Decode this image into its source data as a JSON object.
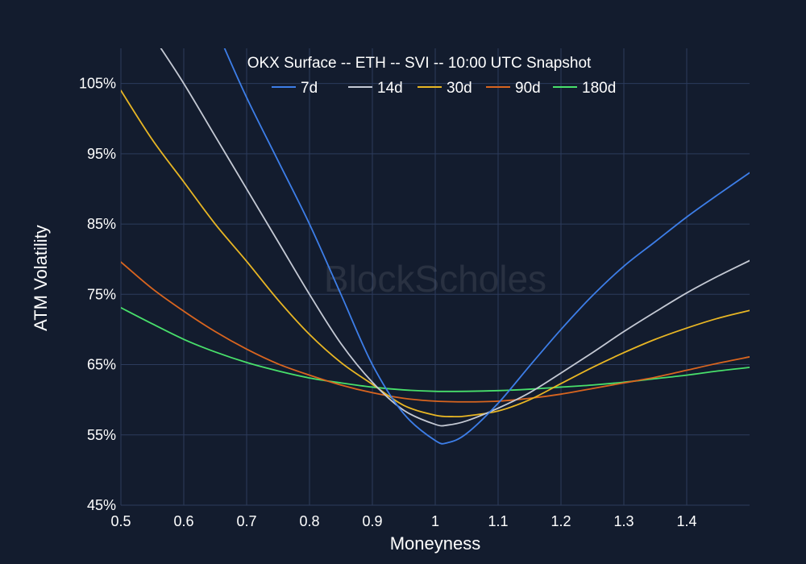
{
  "chart_data": {
    "type": "line",
    "title": "OKX Surface -- ETH -- SVI -- 10:00 UTC Snapshot",
    "xlabel": "Moneyness",
    "ylabel": "ATM Volatility",
    "xlim": [
      0.5,
      1.5
    ],
    "ylim": [
      45,
      110
    ],
    "x_ticks": [
      0.5,
      0.6,
      0.7,
      0.8,
      0.9,
      1.0,
      1.1,
      1.2,
      1.3,
      1.4
    ],
    "x_tick_labels": [
      "0.5",
      "0.6",
      "0.7",
      "0.8",
      "0.9",
      "1",
      "1.1",
      "1.2",
      "1.3",
      "1.4"
    ],
    "y_ticks": [
      45,
      55,
      65,
      75,
      85,
      95,
      105
    ],
    "y_tick_labels": [
      "45%",
      "55%",
      "65%",
      "75%",
      "85%",
      "95%",
      "105%"
    ],
    "grid": true,
    "legend_position": "top-center",
    "series": [
      {
        "name": "7d",
        "color": "#3d7ee8",
        "x": [
          0.66,
          0.7,
          0.75,
          0.8,
          0.85,
          0.9,
          0.95,
          1.0,
          1.02,
          1.05,
          1.1,
          1.15,
          1.2,
          1.25,
          1.3,
          1.35,
          1.4,
          1.45,
          1.5
        ],
        "y": [
          111,
          103,
          94,
          85,
          75,
          65,
          58,
          54.2,
          53.9,
          55.2,
          59.5,
          64.8,
          70,
          74.8,
          79,
          82.5,
          86,
          89.2,
          92.3
        ]
      },
      {
        "name": "14d",
        "color": "#c4c9d4",
        "x": [
          0.56,
          0.6,
          0.65,
          0.7,
          0.75,
          0.8,
          0.85,
          0.9,
          0.95,
          1.0,
          1.02,
          1.05,
          1.1,
          1.15,
          1.2,
          1.25,
          1.3,
          1.35,
          1.4,
          1.45,
          1.5
        ],
        "y": [
          110.5,
          105,
          97.5,
          90,
          82.5,
          75,
          68,
          62.5,
          58.5,
          56.5,
          56.4,
          57,
          58.8,
          61,
          63.8,
          66.7,
          69.7,
          72.5,
          75.2,
          77.6,
          79.8
        ]
      },
      {
        "name": "30d",
        "color": "#e8b624",
        "x": [
          0.5,
          0.55,
          0.6,
          0.65,
          0.7,
          0.75,
          0.8,
          0.85,
          0.9,
          0.95,
          1.0,
          1.03,
          1.05,
          1.1,
          1.15,
          1.2,
          1.25,
          1.3,
          1.35,
          1.4,
          1.45,
          1.5
        ],
        "y": [
          104,
          97,
          91,
          85,
          79.7,
          74.2,
          69.3,
          65.3,
          62.2,
          59.2,
          57.8,
          57.6,
          57.7,
          58.4,
          60,
          62.3,
          64.6,
          66.7,
          68.6,
          70.2,
          71.6,
          72.7
        ]
      },
      {
        "name": "90d",
        "color": "#d9651f",
        "x": [
          0.5,
          0.55,
          0.6,
          0.65,
          0.7,
          0.75,
          0.8,
          0.85,
          0.9,
          0.95,
          1.0,
          1.05,
          1.1,
          1.15,
          1.2,
          1.25,
          1.3,
          1.35,
          1.4,
          1.45,
          1.5
        ],
        "y": [
          79.6,
          75.8,
          72.6,
          69.7,
          67.2,
          65.1,
          63.5,
          62.1,
          61,
          60.2,
          59.8,
          59.7,
          59.8,
          60.2,
          60.8,
          61.6,
          62.4,
          63.2,
          64.2,
          65.2,
          66.1
        ]
      },
      {
        "name": "180d",
        "color": "#48e06b",
        "x": [
          0.5,
          0.55,
          0.6,
          0.65,
          0.7,
          0.75,
          0.8,
          0.85,
          0.9,
          0.95,
          1.0,
          1.05,
          1.1,
          1.15,
          1.2,
          1.25,
          1.3,
          1.35,
          1.4,
          1.45,
          1.5
        ],
        "y": [
          73.1,
          70.8,
          68.6,
          66.8,
          65.3,
          64.1,
          63.1,
          62.4,
          61.8,
          61.4,
          61.2,
          61.2,
          61.3,
          61.5,
          61.8,
          62.1,
          62.5,
          63,
          63.5,
          64.1,
          64.6
        ]
      }
    ]
  },
  "watermark": "BlockScholes"
}
